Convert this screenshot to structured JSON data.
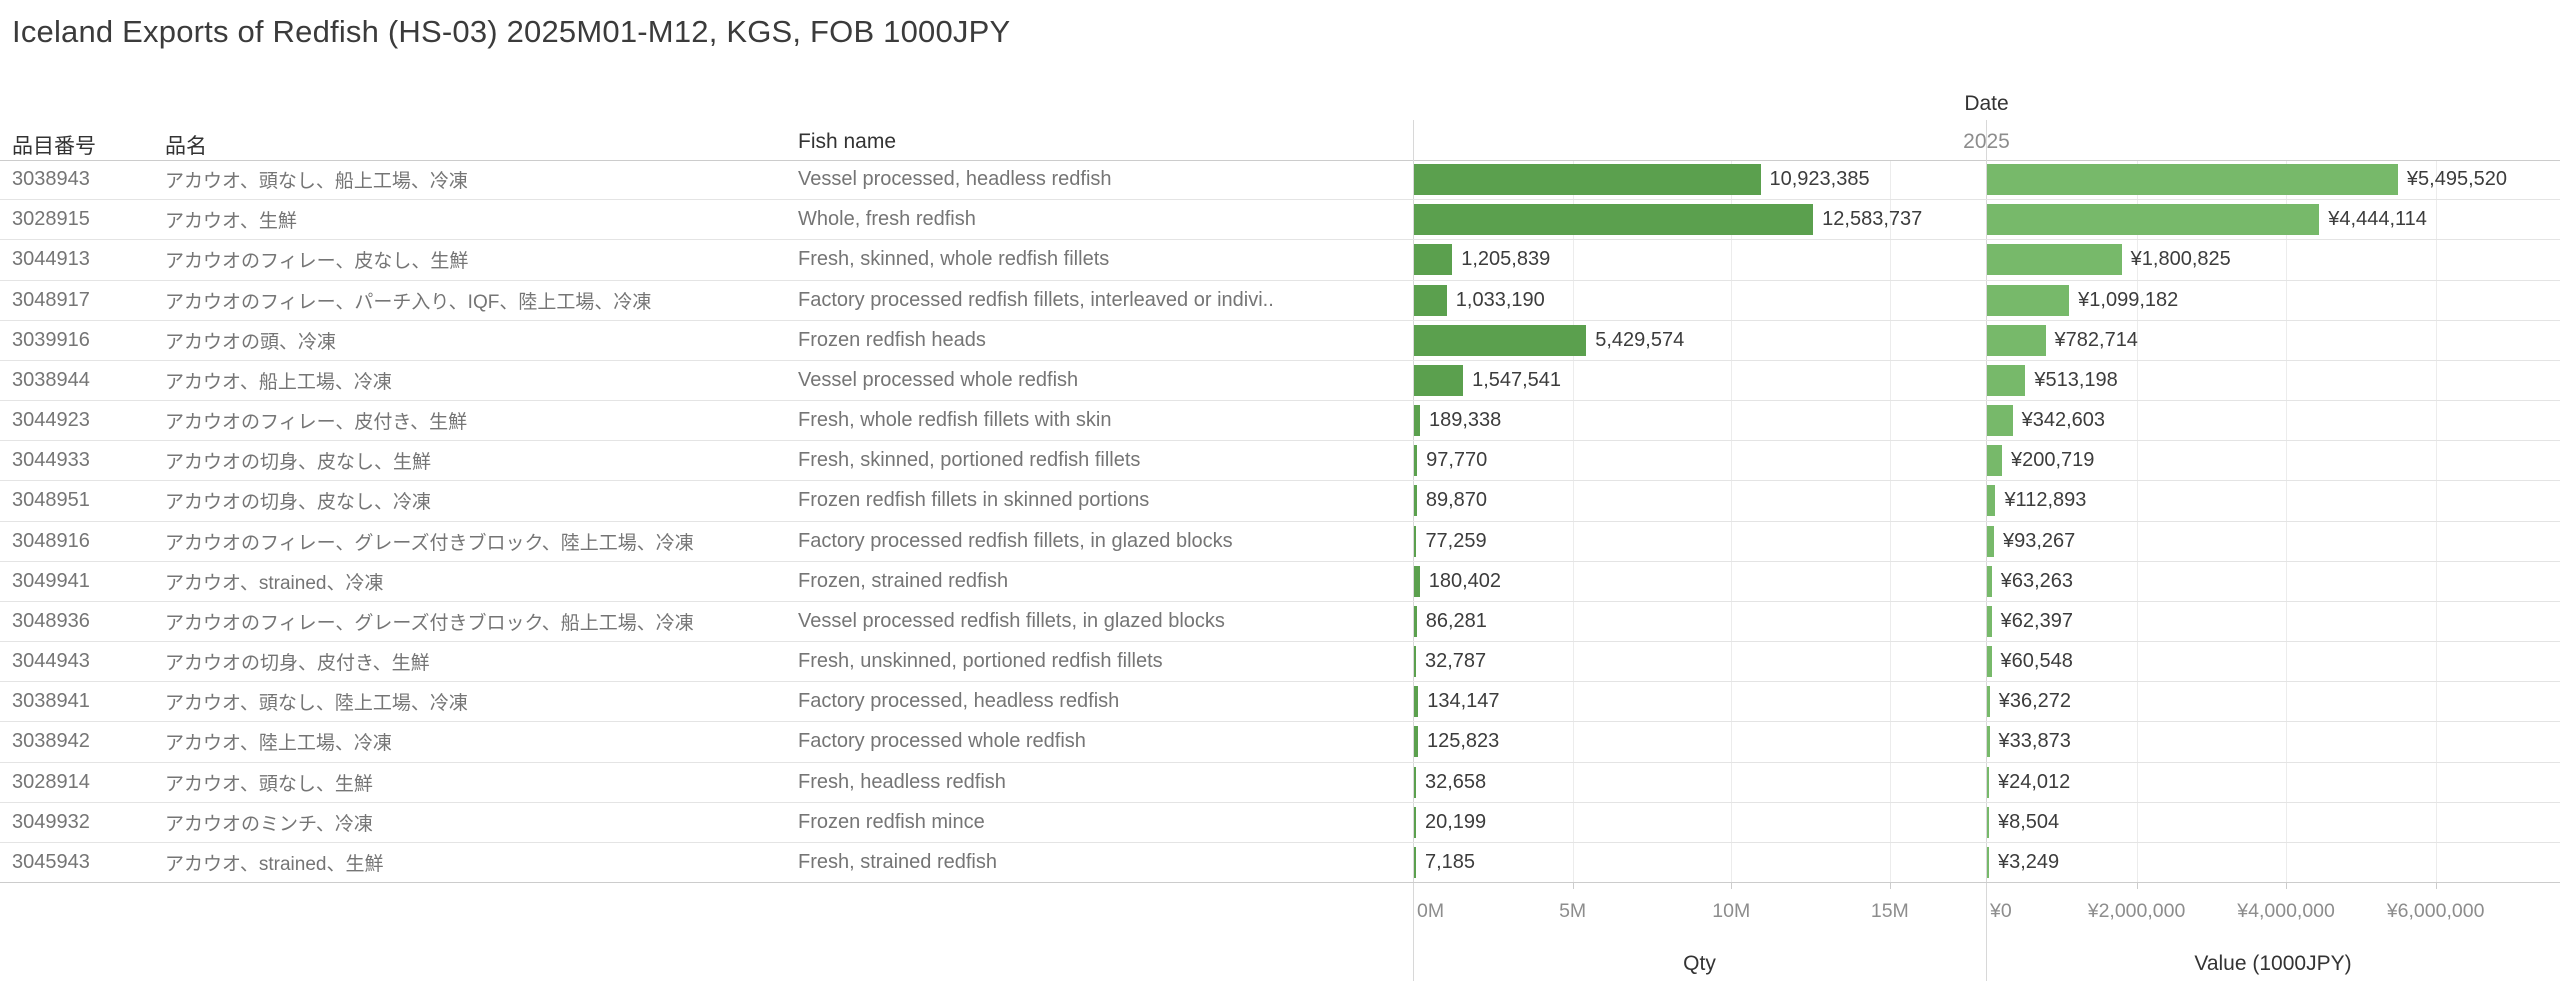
{
  "title": "Iceland Exports of Redfish (HS-03) 2025M01-M12, KGS, FOB 1000JPY",
  "date_header": {
    "label": "Date",
    "year": "2025"
  },
  "colors": {
    "qty_bar": "#5ba04e",
    "value_bar": "#77b96a",
    "gridline": "#ececec",
    "row_line": "#e4e4e4",
    "axis_text": "#8d8d8d",
    "body_text": "#757575"
  },
  "table": {
    "headers": {
      "code": "品目番号",
      "name": "品名",
      "fish": "Fish name"
    },
    "axes": {
      "qty": {
        "title": "Qty",
        "max": 18000000,
        "ticks": [
          {
            "v": 0,
            "label": "0M"
          },
          {
            "v": 5000000,
            "label": "5M"
          },
          {
            "v": 10000000,
            "label": "10M"
          },
          {
            "v": 15000000,
            "label": "15M"
          }
        ]
      },
      "value": {
        "title": "Value (1000JPY)",
        "max": 7650000,
        "ticks": [
          {
            "v": 0,
            "label": "¥0"
          },
          {
            "v": 2000000,
            "label": "¥2,000,000"
          },
          {
            "v": 4000000,
            "label": "¥4,000,000"
          },
          {
            "v": 6000000,
            "label": "¥6,000,000"
          }
        ]
      }
    },
    "rows": [
      {
        "code": "3038943",
        "name": "アカウオ、頭なし、船上工場、冷凍",
        "fish": "Vessel processed, headless redfish",
        "qty": 10923385,
        "qty_label": "10,923,385",
        "value": 5495520,
        "value_label": "¥5,495,520"
      },
      {
        "code": "3028915",
        "name": "アカウオ、生鮮",
        "fish": "Whole, fresh redfish",
        "qty": 12583737,
        "qty_label": "12,583,737",
        "value": 4444114,
        "value_label": "¥4,444,114"
      },
      {
        "code": "3044913",
        "name": "アカウオのフィレー、皮なし、生鮮",
        "fish": "Fresh, skinned, whole redfish fillets",
        "qty": 1205839,
        "qty_label": "1,205,839",
        "value": 1800825,
        "value_label": "¥1,800,825"
      },
      {
        "code": "3048917",
        "name": "アカウオのフィレー、パーチ入り、IQF、陸上工場、冷凍",
        "fish": "Factory processed redfish fillets, interleaved or indivi..",
        "qty": 1033190,
        "qty_label": "1,033,190",
        "value": 1099182,
        "value_label": "¥1,099,182"
      },
      {
        "code": "3039916",
        "name": "アカウオの頭、冷凍",
        "fish": "Frozen redfish heads",
        "qty": 5429574,
        "qty_label": "5,429,574",
        "value": 782714,
        "value_label": "¥782,714"
      },
      {
        "code": "3038944",
        "name": "アカウオ、船上工場、冷凍",
        "fish": "Vessel processed whole redfish",
        "qty": 1547541,
        "qty_label": "1,547,541",
        "value": 513198,
        "value_label": "¥513,198"
      },
      {
        "code": "3044923",
        "name": "アカウオのフィレー、皮付き、生鮮",
        "fish": "Fresh, whole redfish fillets with skin",
        "qty": 189338,
        "qty_label": "189,338",
        "value": 342603,
        "value_label": "¥342,603"
      },
      {
        "code": "3044933",
        "name": "アカウオの切身、皮なし、生鮮",
        "fish": "Fresh, skinned, portioned redfish fillets",
        "qty": 97770,
        "qty_label": "97,770",
        "value": 200719,
        "value_label": "¥200,719"
      },
      {
        "code": "3048951",
        "name": "アカウオの切身、皮なし、冷凍",
        "fish": "Frozen redfish fillets in skinned portions",
        "qty": 89870,
        "qty_label": "89,870",
        "value": 112893,
        "value_label": "¥112,893"
      },
      {
        "code": "3048916",
        "name": "アカウオのフィレー、グレーズ付きブロック、陸上工場、冷凍",
        "fish": "Factory processed redfish fillets, in glazed blocks",
        "qty": 77259,
        "qty_label": "77,259",
        "value": 93267,
        "value_label": "¥93,267"
      },
      {
        "code": "3049941",
        "name": "アカウオ、strained、冷凍",
        "fish": "Frozen, strained redfish",
        "qty": 180402,
        "qty_label": "180,402",
        "value": 63263,
        "value_label": "¥63,263"
      },
      {
        "code": "3048936",
        "name": "アカウオのフィレー、グレーズ付きブロック、船上工場、冷凍",
        "fish": "Vessel processed redfish fillets, in glazed blocks",
        "qty": 86281,
        "qty_label": "86,281",
        "value": 62397,
        "value_label": "¥62,397"
      },
      {
        "code": "3044943",
        "name": "アカウオの切身、皮付き、生鮮",
        "fish": "Fresh, unskinned, portioned redfish fillets",
        "qty": 32787,
        "qty_label": "32,787",
        "value": 60548,
        "value_label": "¥60,548"
      },
      {
        "code": "3038941",
        "name": "アカウオ、頭なし、陸上工場、冷凍",
        "fish": "Factory processed, headless redfish",
        "qty": 134147,
        "qty_label": "134,147",
        "value": 36272,
        "value_label": "¥36,272"
      },
      {
        "code": "3038942",
        "name": "アカウオ、陸上工場、冷凍",
        "fish": "Factory processed whole redfish",
        "qty": 125823,
        "qty_label": "125,823",
        "value": 33873,
        "value_label": "¥33,873"
      },
      {
        "code": "3028914",
        "name": "アカウオ、頭なし、生鮮",
        "fish": "Fresh, headless redfish",
        "qty": 32658,
        "qty_label": "32,658",
        "value": 24012,
        "value_label": "¥24,012"
      },
      {
        "code": "3049932",
        "name": "アカウオのミンチ、冷凍",
        "fish": "Frozen redfish mince",
        "qty": 20199,
        "qty_label": "20,199",
        "value": 8504,
        "value_label": "¥8,504"
      },
      {
        "code": "3045943",
        "name": "アカウオ、strained、生鮮",
        "fish": "Fresh, strained redfish",
        "qty": 7185,
        "qty_label": "7,185",
        "value": 3249,
        "value_label": "¥3,249"
      }
    ]
  },
  "chart_data": {
    "type": "bar",
    "title": "Iceland Exports of Redfish (HS-03) 2025M01-M12, KGS, FOB 1000JPY",
    "orientation": "horizontal",
    "column_header": "Date",
    "year": "2025",
    "categories": [
      "3038943",
      "3028915",
      "3044913",
      "3048917",
      "3039916",
      "3038944",
      "3044923",
      "3044933",
      "3048951",
      "3048916",
      "3049941",
      "3048936",
      "3044943",
      "3038941",
      "3038942",
      "3028914",
      "3049932",
      "3045943"
    ],
    "category_fish_names": [
      "Vessel processed, headless redfish",
      "Whole, fresh redfish",
      "Fresh, skinned, whole redfish fillets",
      "Factory processed redfish fillets, interleaved or indivi..",
      "Frozen redfish heads",
      "Vessel processed whole redfish",
      "Fresh, whole redfish fillets with skin",
      "Fresh, skinned, portioned redfish fillets",
      "Frozen redfish fillets in skinned portions",
      "Factory processed redfish fillets, in glazed blocks",
      "Frozen, strained redfish",
      "Vessel processed redfish fillets, in glazed blocks",
      "Fresh, unskinned, portioned redfish fillets",
      "Factory processed, headless redfish",
      "Factory processed whole redfish",
      "Fresh, headless redfish",
      "Frozen redfish mince",
      "Fresh, strained redfish"
    ],
    "series": [
      {
        "name": "Qty",
        "axis_ticks": [
          "0M",
          "5M",
          "10M",
          "15M"
        ],
        "xlim": [
          0,
          18000000
        ],
        "values": [
          10923385,
          12583737,
          1205839,
          1033190,
          5429574,
          1547541,
          189338,
          97770,
          89870,
          77259,
          180402,
          86281,
          32787,
          134147,
          125823,
          32658,
          20199,
          7185
        ]
      },
      {
        "name": "Value (1000JPY)",
        "axis_ticks": [
          "¥0",
          "¥2,000,000",
          "¥4,000,000",
          "¥6,000,000"
        ],
        "xlim": [
          0,
          7650000
        ],
        "values": [
          5495520,
          4444114,
          1800825,
          1099182,
          782714,
          513198,
          342603,
          200719,
          112893,
          93267,
          63263,
          62397,
          60548,
          36272,
          33873,
          24012,
          8504,
          3249
        ]
      }
    ],
    "grid": true,
    "legend": false
  }
}
